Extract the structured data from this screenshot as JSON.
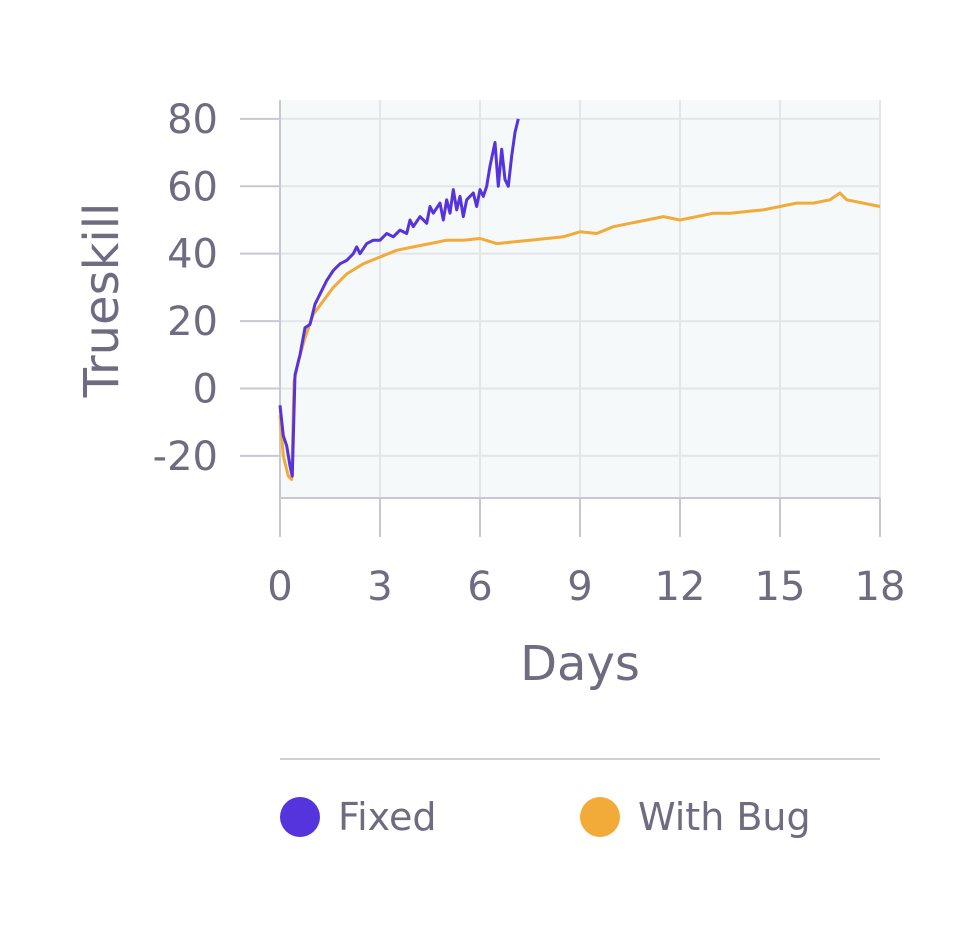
{
  "chart_data": {
    "type": "line",
    "xlabel": "Days",
    "ylabel": "Trueskill",
    "xlim": [
      0,
      18
    ],
    "ylim": [
      -32.5,
      85.6
    ],
    "xticks": [
      0,
      3,
      6,
      9,
      12,
      15,
      18
    ],
    "yticks": [
      80,
      60,
      40,
      20,
      0,
      -20
    ],
    "xtick_labels": [
      "0",
      "3",
      "6",
      "9",
      "12",
      "15",
      "18"
    ],
    "ytick_labels": [
      "80",
      "60",
      "40",
      "20",
      "0",
      "-20"
    ],
    "grid": true,
    "legend_position": "bottom",
    "series": [
      {
        "name": "Fixed",
        "color": "#5533dd",
        "x": [
          0,
          0.1,
          0.2,
          0.3,
          0.37,
          0.45,
          0.6,
          0.75,
          0.9,
          1.05,
          1.2,
          1.4,
          1.6,
          1.8,
          2.0,
          2.2,
          2.3,
          2.4,
          2.6,
          2.8,
          3.0,
          3.2,
          3.4,
          3.6,
          3.8,
          3.9,
          4.0,
          4.2,
          4.4,
          4.5,
          4.6,
          4.8,
          4.9,
          5.0,
          5.1,
          5.2,
          5.3,
          5.4,
          5.5,
          5.6,
          5.8,
          5.9,
          6.0,
          6.1,
          6.2,
          6.3,
          6.45,
          6.55,
          6.65,
          6.75,
          6.85,
          6.95,
          7.05,
          7.15
        ],
        "y": [
          -5,
          -14,
          -17,
          -23,
          -26,
          4,
          10,
          18,
          19,
          25,
          28,
          32,
          35,
          37,
          38,
          40,
          42,
          40,
          43,
          44,
          44,
          46,
          45,
          47,
          46,
          50,
          48,
          51,
          49,
          54,
          52,
          55,
          50,
          56,
          52,
          59,
          53,
          57,
          51,
          56,
          58,
          54,
          59,
          57,
          60,
          66,
          73,
          60,
          71,
          62,
          60,
          69,
          76,
          80
        ]
      },
      {
        "name": "With Bug",
        "color": "#f2aa38",
        "x": [
          0,
          0.1,
          0.25,
          0.35,
          0.42,
          0.55,
          0.75,
          1.0,
          1.3,
          1.6,
          2.0,
          2.5,
          3.0,
          3.5,
          4.0,
          4.5,
          5.0,
          5.5,
          6.0,
          6.5,
          7.0,
          7.5,
          8,
          8.5,
          9,
          9.5,
          10,
          10.5,
          11,
          11.5,
          12,
          12.5,
          13,
          13.5,
          14,
          14.5,
          15,
          15.5,
          16,
          16.5,
          16.8,
          17,
          17.5,
          18
        ],
        "y": [
          -8,
          -20,
          -26,
          -27,
          2,
          8,
          15,
          22,
          26,
          30,
          34,
          37,
          39,
          41,
          42,
          43,
          44,
          44,
          44.5,
          43,
          43.5,
          44,
          44.5,
          45,
          46.5,
          46,
          48,
          49,
          50,
          51,
          50,
          51,
          52,
          52,
          52.5,
          53,
          54,
          55,
          55,
          56,
          58,
          56,
          55,
          54
        ]
      }
    ]
  },
  "legend": {
    "items": [
      {
        "label": "Fixed",
        "color": "#5533dd"
      },
      {
        "label": "With Bug",
        "color": "#f2aa38"
      }
    ]
  }
}
